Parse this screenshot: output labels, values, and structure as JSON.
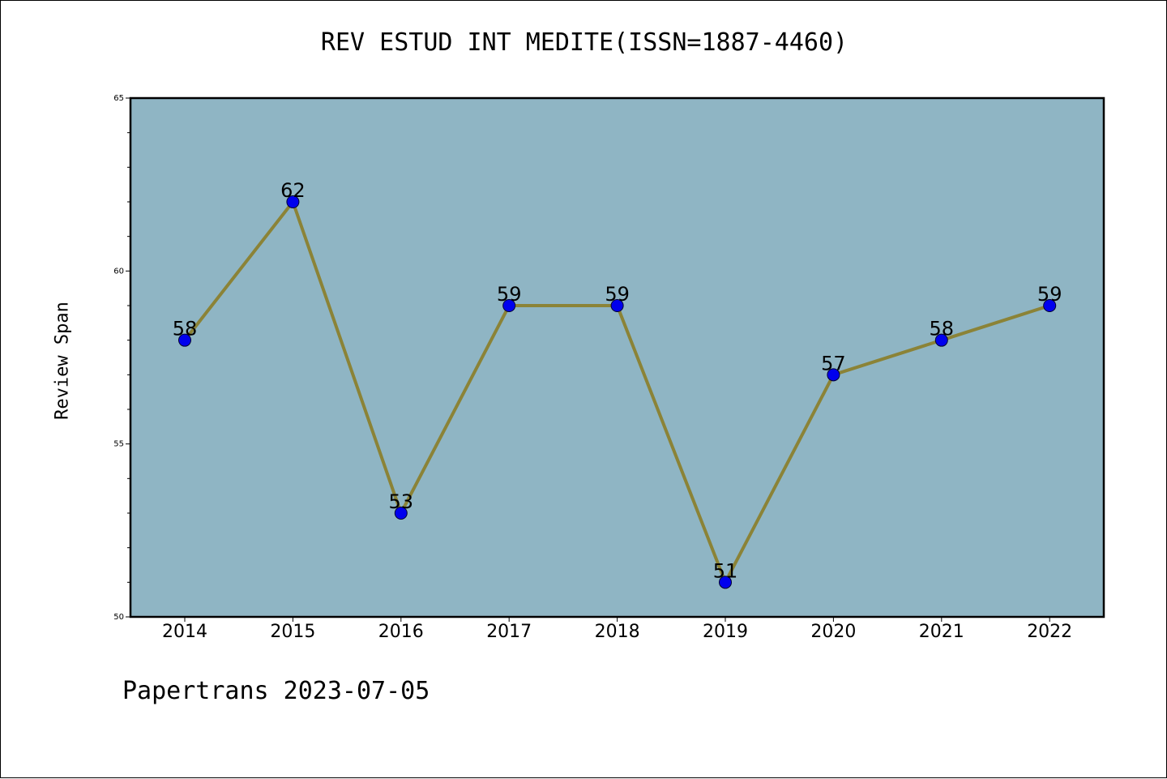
{
  "chart_data": {
    "type": "line",
    "title": "REV ESTUD INT MEDITE(ISSN=1887-4460)",
    "xlabel": "",
    "ylabel": "Review Span",
    "x": [
      "2014",
      "2015",
      "2016",
      "2017",
      "2018",
      "2019",
      "2020",
      "2021",
      "2022"
    ],
    "series": [
      {
        "values": [
          58,
          62,
          53,
          59,
          59,
          51,
          57,
          58,
          59
        ]
      }
    ],
    "ylim": [
      50,
      65
    ],
    "yticks": [
      "50",
      "55",
      "60",
      "65"
    ],
    "grid": false,
    "colors": {
      "plot_background": "#8fb5c4",
      "line": "#8b8337",
      "marker": "#0000ee"
    }
  },
  "footer": "Papertrans 2023-07-05"
}
